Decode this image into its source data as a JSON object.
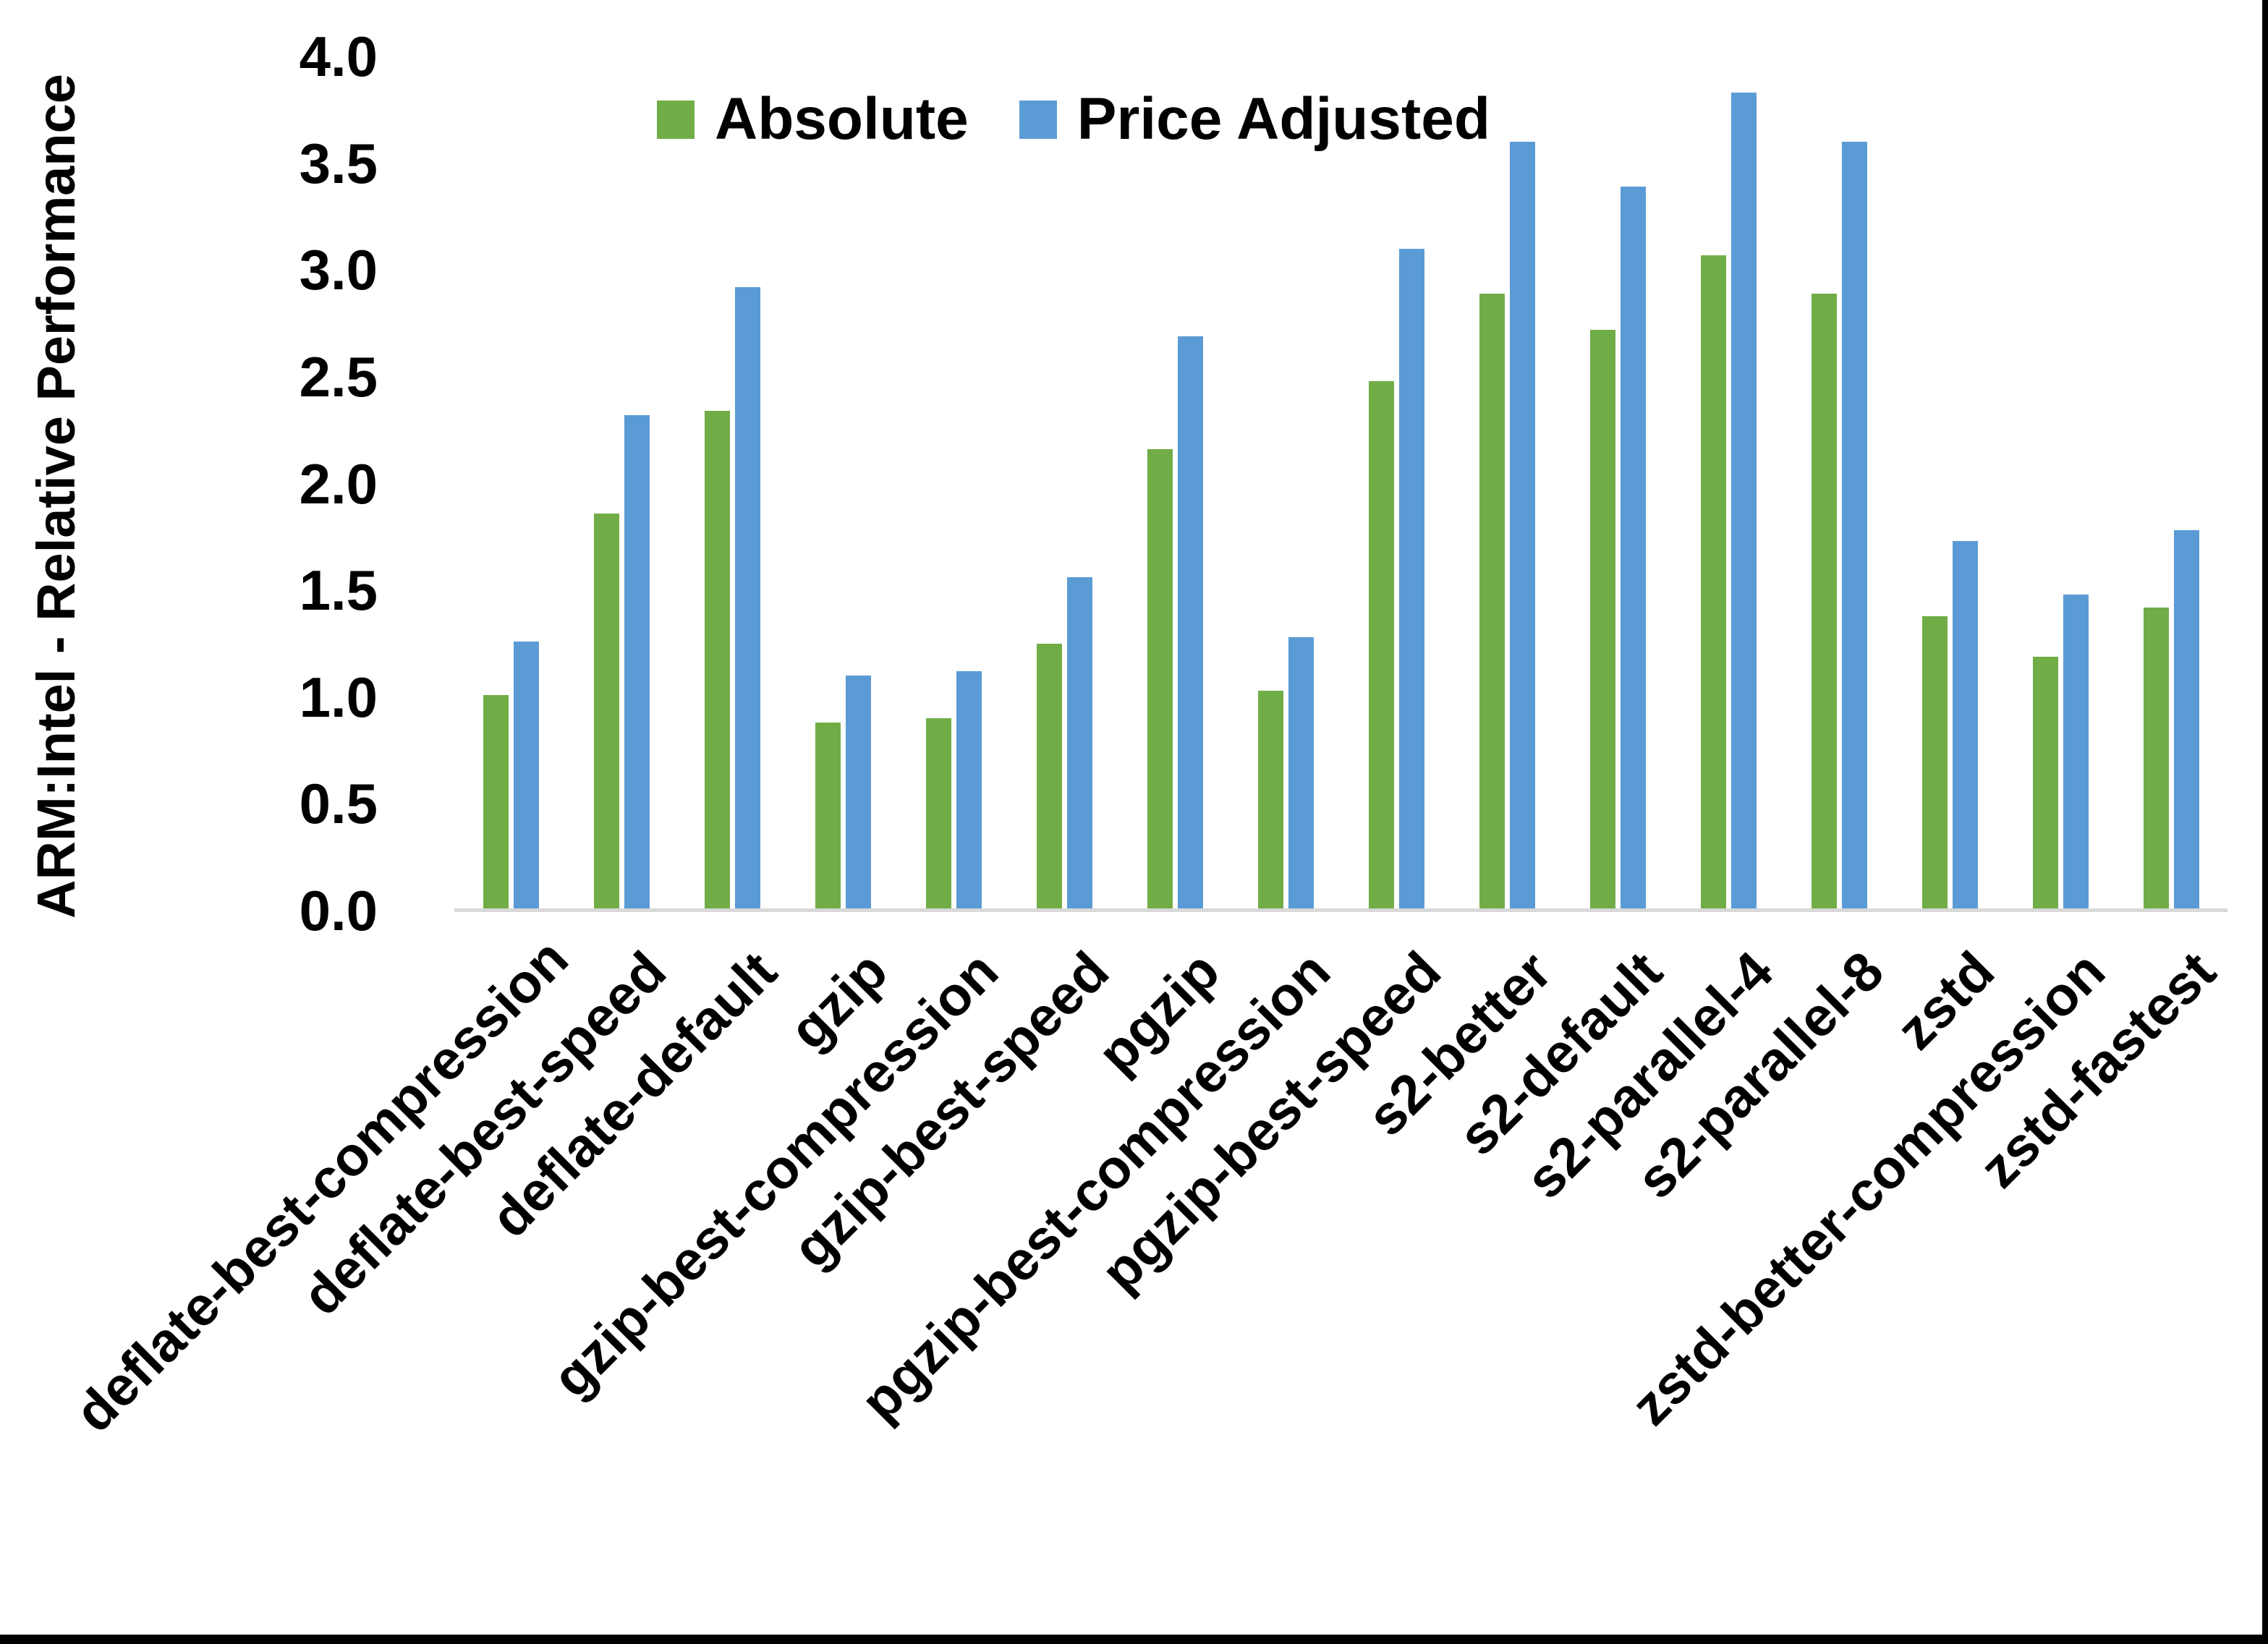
{
  "figure": {
    "ylabel": "ARM:Intel - Relative Performance"
  },
  "legend": [
    {
      "label": "Absolute",
      "color": "#70AD47"
    },
    {
      "label": "Price Adjusted",
      "color": "#5B9BD5"
    }
  ],
  "chart_data": {
    "type": "bar",
    "title": "",
    "xlabel": "",
    "ylabel": "ARM:Intel - Relative Performance",
    "ylim": [
      0.0,
      4.0
    ],
    "ytick_step": 0.5,
    "ytick_labels": [
      "0.0",
      "0.5",
      "1.0",
      "1.5",
      "2.0",
      "2.5",
      "3.0",
      "3.5",
      "4.0"
    ],
    "grid": false,
    "legend_position": "top-center",
    "axis_color": "#D9D9D9",
    "categories": [
      "deflate-best-compression",
      "deflate-best-speed",
      "deflate-default",
      "gzip",
      "gzip-best-compression",
      "gzip-best-speed",
      "pgzip",
      "pgzip-best-compression",
      "pgzip-best-speed",
      "s2-better",
      "s2-default",
      "s2-parallel-4",
      "s2-parallel-8",
      "zstd",
      "zstd-better-compression",
      "zstd-fastest"
    ],
    "series": [
      {
        "name": "Absolute",
        "color": "#70AD47",
        "values": [
          1.0,
          1.85,
          2.33,
          0.87,
          0.89,
          1.24,
          2.15,
          1.02,
          2.47,
          2.88,
          2.71,
          3.06,
          2.88,
          1.37,
          1.18,
          1.41
        ]
      },
      {
        "name": "Price Adjusted",
        "color": "#5B9BD5",
        "values": [
          1.25,
          2.31,
          2.91,
          1.09,
          1.11,
          1.55,
          2.68,
          1.27,
          3.09,
          3.59,
          3.38,
          3.82,
          3.59,
          1.72,
          1.47,
          1.77
        ]
      }
    ]
  }
}
